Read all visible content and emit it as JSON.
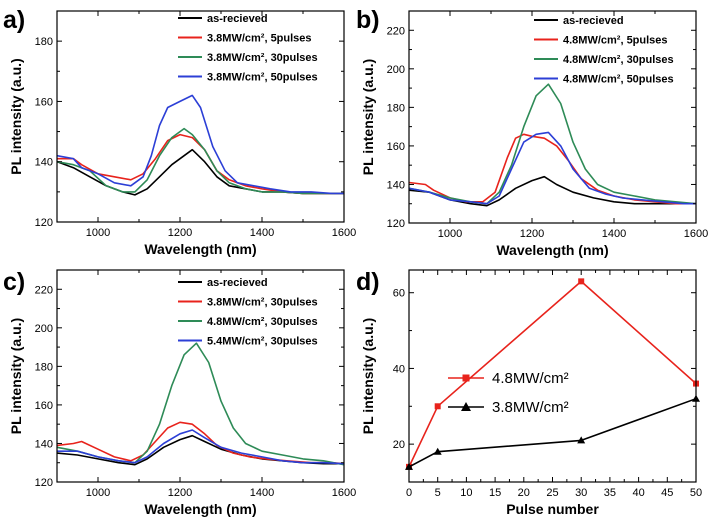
{
  "chart_data": [
    {
      "id": "a",
      "type": "line",
      "panel_label": "a)",
      "xlabel": "Wavelength (nm)",
      "ylabel": "PL intensity (a.u.)",
      "xlim": [
        900,
        1600
      ],
      "ylim": [
        120,
        190
      ],
      "xticks": [
        1000,
        1200,
        1400,
        1600
      ],
      "yticks": [
        120,
        140,
        160,
        180
      ],
      "legend_position": "top-right",
      "series": [
        {
          "name": "as-recieved",
          "color": "#000000",
          "x": [
            900,
            940,
            980,
            1020,
            1060,
            1090,
            1120,
            1150,
            1180,
            1210,
            1230,
            1260,
            1290,
            1320,
            1360,
            1400,
            1450,
            1500,
            1550,
            1600
          ],
          "y": [
            140,
            138,
            135,
            132,
            130,
            129,
            131,
            135,
            139,
            142,
            144,
            140,
            135,
            132,
            131,
            130,
            130,
            129.5,
            129.5,
            129.5
          ]
        },
        {
          "name": "3.8MW/cm², 5pulses",
          "color": "#e8231c",
          "x": [
            900,
            940,
            960,
            1000,
            1040,
            1080,
            1110,
            1140,
            1170,
            1200,
            1230,
            1260,
            1290,
            1320,
            1360,
            1400,
            1450,
            1500,
            1550,
            1600
          ],
          "y": [
            141,
            141,
            139,
            136,
            135,
            134,
            136,
            141,
            147,
            149,
            148,
            144,
            137,
            134,
            132,
            131,
            130,
            129.5,
            129.5,
            129.5
          ]
        },
        {
          "name": "3.8MW/cm², 30pulses",
          "color": "#2e8b57",
          "x": [
            900,
            940,
            980,
            1020,
            1060,
            1090,
            1120,
            1150,
            1180,
            1210,
            1230,
            1260,
            1290,
            1320,
            1360,
            1400,
            1450,
            1500,
            1550,
            1600
          ],
          "y": [
            140,
            139,
            137,
            132,
            130,
            130,
            134,
            142,
            148,
            151,
            149,
            144,
            137,
            133,
            131,
            130,
            130,
            129.5,
            129.5,
            129.5
          ]
        },
        {
          "name": "3.8MW/cm², 50pulses",
          "color": "#2c3fd6",
          "x": [
            900,
            940,
            960,
            1000,
            1040,
            1080,
            1110,
            1130,
            1150,
            1170,
            1200,
            1230,
            1250,
            1280,
            1310,
            1340,
            1380,
            1420,
            1470,
            1520,
            1570,
            1600
          ],
          "y": [
            142,
            141,
            138,
            136,
            133,
            132,
            135,
            142,
            152,
            158,
            160,
            162,
            158,
            145,
            137,
            133,
            132,
            131,
            130,
            130,
            129.5,
            129.5
          ]
        }
      ]
    },
    {
      "id": "b",
      "type": "line",
      "panel_label": "b)",
      "xlabel": "Wavelength (nm)",
      "ylabel": "PL intensity (a.u.)",
      "xlim": [
        900,
        1600
      ],
      "ylim": [
        120,
        230
      ],
      "xticks": [
        1000,
        1200,
        1400,
        1600
      ],
      "yticks": [
        120,
        140,
        160,
        180,
        200,
        220
      ],
      "legend_position": "top-right",
      "series": [
        {
          "name": "as-recieved",
          "color": "#000000",
          "x": [
            900,
            950,
            1000,
            1050,
            1090,
            1120,
            1160,
            1200,
            1230,
            1260,
            1300,
            1350,
            1400,
            1450,
            1500,
            1550,
            1600
          ],
          "y": [
            137,
            136,
            132,
            130,
            129,
            132,
            138,
            142,
            144,
            140,
            136,
            133,
            131,
            130,
            130,
            130,
            130
          ]
        },
        {
          "name": "4.8MW/cm², 5pulses",
          "color": "#e8231c",
          "x": [
            900,
            940,
            960,
            1000,
            1040,
            1080,
            1110,
            1140,
            1160,
            1180,
            1200,
            1230,
            1260,
            1290,
            1320,
            1360,
            1400,
            1450,
            1500,
            1550,
            1600
          ],
          "y": [
            141,
            140,
            137,
            133,
            131,
            131,
            136,
            154,
            164,
            166,
            165,
            164,
            160,
            152,
            143,
            137,
            134,
            132,
            131,
            130,
            130
          ]
        },
        {
          "name": "4.8MW/cm², 30pulses",
          "color": "#2e8b57",
          "x": [
            900,
            950,
            1000,
            1050,
            1090,
            1120,
            1150,
            1180,
            1210,
            1240,
            1270,
            1300,
            1330,
            1360,
            1400,
            1450,
            1500,
            1550,
            1600
          ],
          "y": [
            138,
            136,
            133,
            131,
            130,
            136,
            150,
            170,
            186,
            192,
            182,
            162,
            148,
            140,
            136,
            134,
            132,
            131,
            130
          ]
        },
        {
          "name": "4.8MW/cm², 50pulses",
          "color": "#2c3fd6",
          "x": [
            900,
            950,
            1000,
            1050,
            1090,
            1120,
            1150,
            1180,
            1210,
            1240,
            1270,
            1300,
            1340,
            1380,
            1420,
            1470,
            1520,
            1570,
            1600
          ],
          "y": [
            138,
            136,
            132,
            131,
            130,
            134,
            148,
            162,
            166,
            167,
            160,
            148,
            138,
            135,
            133,
            132,
            131,
            130,
            130
          ]
        }
      ]
    },
    {
      "id": "c",
      "type": "line",
      "panel_label": "c)",
      "xlabel": "Wavelength (nm)",
      "ylabel": "PL intensity (a.u.)",
      "xlim": [
        900,
        1600
      ],
      "ylim": [
        120,
        230
      ],
      "xticks": [
        1000,
        1200,
        1400,
        1600
      ],
      "yticks": [
        120,
        140,
        160,
        180,
        200,
        220
      ],
      "legend_position": "top-right",
      "series": [
        {
          "name": "as-recieved",
          "color": "#000000",
          "x": [
            900,
            950,
            1000,
            1050,
            1090,
            1120,
            1160,
            1200,
            1230,
            1260,
            1300,
            1350,
            1400,
            1450,
            1500,
            1550,
            1600
          ],
          "y": [
            135,
            134,
            132,
            130,
            129,
            132,
            138,
            142,
            144,
            141,
            137,
            134,
            132,
            131,
            130,
            129.5,
            129.5
          ]
        },
        {
          "name": "3.8MW/cm², 30pulses",
          "color": "#e8231c",
          "x": [
            900,
            940,
            960,
            1000,
            1040,
            1080,
            1110,
            1140,
            1170,
            1200,
            1230,
            1260,
            1290,
            1330,
            1370,
            1410,
            1460,
            1520,
            1570,
            1600
          ],
          "y": [
            139,
            140,
            141,
            137,
            133,
            131,
            134,
            141,
            148,
            151,
            150,
            145,
            139,
            135,
            133,
            132,
            131,
            130,
            130,
            129.5
          ]
        },
        {
          "name": "4.8MW/cm², 30pulses",
          "color": "#2e8b57",
          "x": [
            900,
            950,
            1000,
            1050,
            1090,
            1120,
            1150,
            1180,
            1210,
            1240,
            1270,
            1300,
            1330,
            1360,
            1400,
            1450,
            1500,
            1550,
            1600
          ],
          "y": [
            138,
            136,
            133,
            131,
            130,
            136,
            150,
            170,
            186,
            192,
            182,
            162,
            148,
            140,
            136,
            134,
            132,
            131,
            129
          ]
        },
        {
          "name": "5.4MW/cm², 30pulses",
          "color": "#2c3fd6",
          "x": [
            900,
            950,
            1000,
            1050,
            1090,
            1120,
            1160,
            1200,
            1230,
            1260,
            1300,
            1350,
            1400,
            1450,
            1500,
            1550,
            1600
          ],
          "y": [
            136,
            136,
            133,
            131,
            130,
            133,
            140,
            145,
            147,
            143,
            138,
            135,
            133,
            131,
            130,
            130,
            129.5
          ]
        }
      ]
    },
    {
      "id": "d",
      "type": "line",
      "panel_label": "d)",
      "xlabel": "Pulse number",
      "ylabel": "PL intensity (a.u.)",
      "xlim": [
        0,
        50
      ],
      "ylim": [
        10,
        66
      ],
      "xticks": [
        0,
        5,
        10,
        15,
        20,
        25,
        30,
        35,
        40,
        45,
        50
      ],
      "yticks": [
        20,
        40,
        60
      ],
      "legend_position": "center",
      "series": [
        {
          "name": "4.8MW/cm²",
          "color": "#e8231c",
          "marker": "square",
          "x": [
            0,
            5,
            30,
            50
          ],
          "y": [
            14,
            30,
            63,
            36
          ]
        },
        {
          "name": "3.8MW/cm²",
          "color": "#000000",
          "marker": "triangle",
          "x": [
            0,
            5,
            30,
            50
          ],
          "y": [
            14,
            18,
            21,
            32
          ]
        }
      ]
    }
  ]
}
